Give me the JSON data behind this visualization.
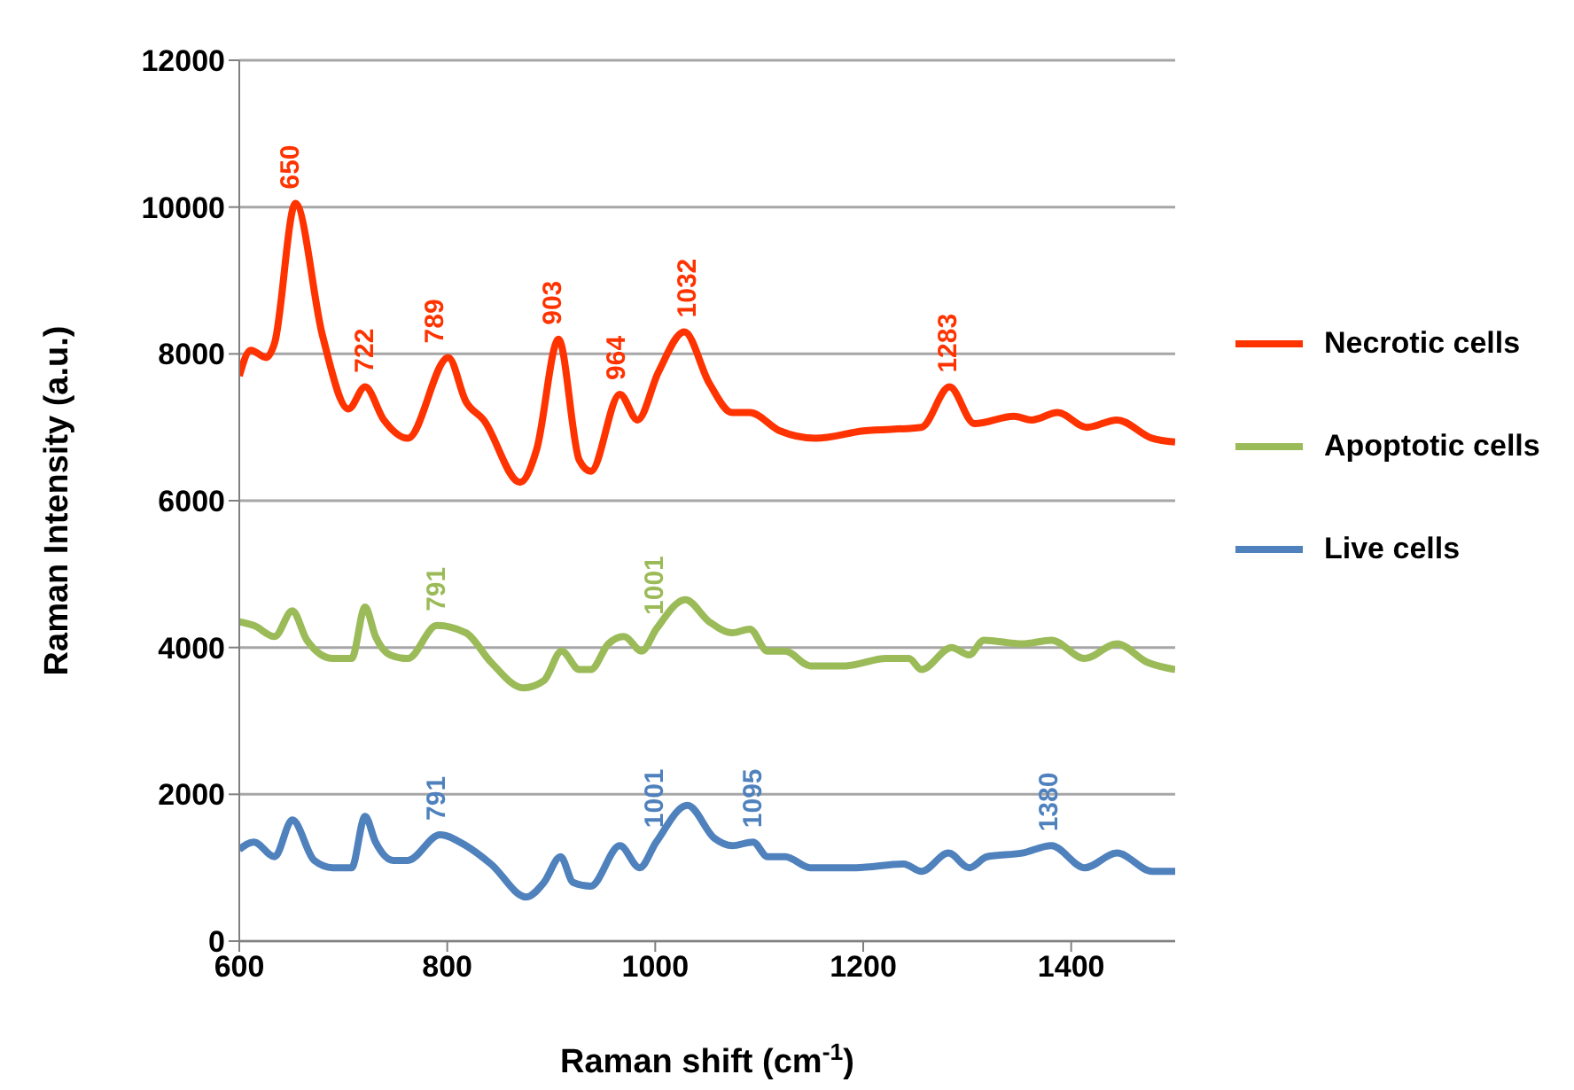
{
  "chart_data": {
    "type": "line",
    "xlabel": "Raman shift (cm$^{-1}$)",
    "ylabel": "Raman Intensity (a.u.)",
    "xlim": [
      600,
      1500
    ],
    "xticks": [
      600,
      800,
      1000,
      1200,
      1400
    ],
    "ylim": [
      0,
      12000
    ],
    "yticks": [
      0,
      2000,
      4000,
      6000,
      8000,
      10000,
      12000
    ],
    "grid": "y",
    "legend": "right",
    "marker": "none",
    "series": [
      {
        "name": "Necrotic cells",
        "color": "#ff3300",
        "x": [
          600,
          611,
          626,
          634,
          654,
          680,
          705,
          721,
          739,
          762,
          801,
          818,
          835,
          870,
          886,
          907,
          927,
          938,
          966,
          983,
          1003,
          1028,
          1052,
          1074,
          1091,
          1120,
          1154,
          1200,
          1256,
          1283,
          1307,
          1345,
          1362,
          1387,
          1415,
          1444,
          1478,
          1500
        ],
        "values": [
          7700,
          8050,
          7950,
          8150,
          10050,
          8250,
          7250,
          7550,
          7100,
          6850,
          7950,
          7350,
          7100,
          6250,
          6700,
          8200,
          6550,
          6400,
          7450,
          7100,
          7750,
          8300,
          7600,
          7200,
          7200,
          6950,
          6850,
          6950,
          7000,
          7550,
          7050,
          7150,
          7100,
          7200,
          7000,
          7100,
          6850,
          6800
        ]
      },
      {
        "name": "Apoptotic cells",
        "color": "#9bbb59",
        "x": [
          600,
          614,
          634,
          651,
          665,
          690,
          708,
          721,
          731,
          745,
          762,
          790,
          818,
          842,
          873,
          893,
          910,
          927,
          938,
          955,
          970,
          987,
          1001,
          1029,
          1052,
          1074,
          1091,
          1108,
          1125,
          1149,
          1183,
          1222,
          1244,
          1256,
          1285,
          1302,
          1316,
          1353,
          1381,
          1413,
          1444,
          1473,
          1500
        ],
        "values": [
          4350,
          4300,
          4150,
          4500,
          4100,
          3850,
          3850,
          4550,
          4150,
          3900,
          3850,
          4300,
          4200,
          3800,
          3450,
          3550,
          3950,
          3700,
          3700,
          4050,
          4150,
          3950,
          4250,
          4650,
          4350,
          4200,
          4250,
          3950,
          3950,
          3750,
          3750,
          3850,
          3850,
          3700,
          4000,
          3900,
          4100,
          4050,
          4100,
          3850,
          4050,
          3800,
          3700
        ]
      },
      {
        "name": "Live cells",
        "color": "#4f81bd",
        "x": [
          600,
          614,
          634,
          651,
          672,
          690,
          708,
          721,
          731,
          748,
          762,
          793,
          818,
          842,
          876,
          893,
          909,
          921,
          938,
          966,
          985,
          1001,
          1031,
          1057,
          1074,
          1094,
          1108,
          1125,
          1149,
          1193,
          1239,
          1256,
          1282,
          1302,
          1319,
          1353,
          1381,
          1413,
          1444,
          1478,
          1500
        ],
        "values": [
          1250,
          1350,
          1150,
          1650,
          1100,
          1000,
          1000,
          1700,
          1350,
          1100,
          1100,
          1450,
          1300,
          1050,
          600,
          800,
          1150,
          800,
          750,
          1300,
          1000,
          1350,
          1850,
          1400,
          1300,
          1350,
          1150,
          1150,
          1000,
          1000,
          1050,
          950,
          1200,
          1000,
          1150,
          1200,
          1300,
          1000,
          1200,
          950,
          950
        ]
      }
    ],
    "annotations": [
      {
        "text": "650",
        "x": 650,
        "y": 10050
      },
      {
        "text": "722",
        "x": 722,
        "y": 7550
      },
      {
        "text": "789",
        "x": 789,
        "y": 7950
      },
      {
        "text": "903",
        "x": 903,
        "y": 8200
      },
      {
        "text": "964",
        "x": 964,
        "y": 7450
      },
      {
        "text": "1032",
        "x": 1032,
        "y": 8300
      },
      {
        "text": "1283",
        "x": 1283,
        "y": 7550
      },
      {
        "text": "791",
        "x": 791,
        "y": 4300
      },
      {
        "text": "1001",
        "x": 1001,
        "y": 4250
      },
      {
        "text": "791",
        "x": 791,
        "y": 1450
      },
      {
        "text": "1001",
        "x": 1001,
        "y": 1350
      },
      {
        "text": "1095",
        "x": 1095,
        "y": 1350
      },
      {
        "text": "1380",
        "x": 1380,
        "y": 1300
      }
    ]
  }
}
